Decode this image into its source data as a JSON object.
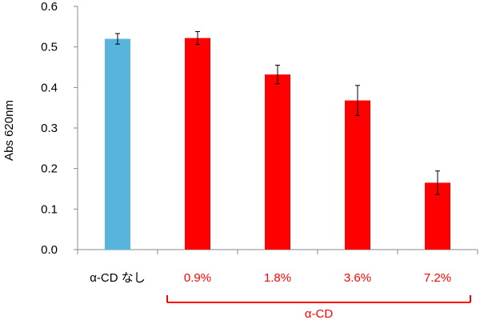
{
  "chart_data": {
    "type": "bar",
    "categories": [
      "α-CD なし",
      "0.9%",
      "1.8%",
      "3.6%",
      "7.2%"
    ],
    "values": [
      0.52,
      0.522,
      0.432,
      0.368,
      0.165
    ],
    "errors": [
      0.013,
      0.016,
      0.023,
      0.037,
      0.029
    ],
    "ylabel": "Abs 620nm",
    "ylim": [
      0,
      0.6
    ],
    "yticks": [
      "0.0",
      "0.1",
      "0.2",
      "0.3",
      "0.4",
      "0.5",
      "0.6"
    ],
    "group_label": "α-CD",
    "grid": false,
    "colors": {
      "control_bar": "#56B4DD",
      "treatment_bar": "#FF0000",
      "control_label": "#000000",
      "treatment_label": "#FF0000",
      "group_bracket": "#FF0000",
      "axis": "#888888"
    }
  }
}
